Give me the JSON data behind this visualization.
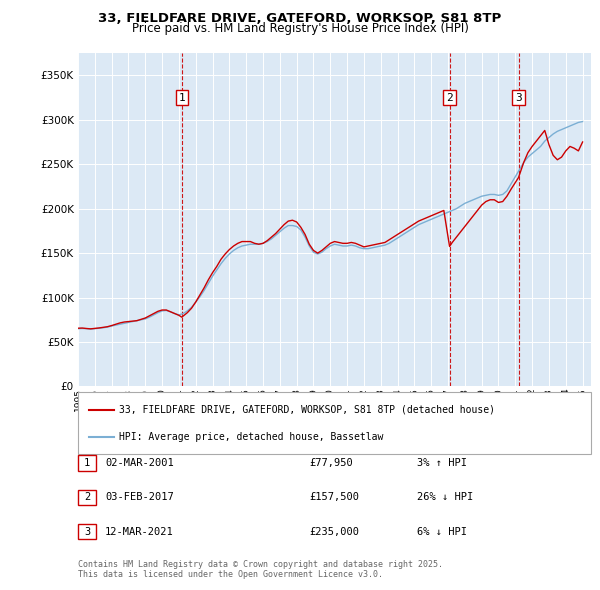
{
  "title_line1": "33, FIELDFARE DRIVE, GATEFORD, WORKSOP, S81 8TP",
  "title_line2": "Price paid vs. HM Land Registry's House Price Index (HPI)",
  "ytick_values": [
    0,
    50000,
    100000,
    150000,
    200000,
    250000,
    300000,
    350000
  ],
  "ylim": [
    0,
    375000
  ],
  "xlim_start": 1995.0,
  "xlim_end": 2025.5,
  "background_color": "#dce9f5",
  "grid_color": "#ffffff",
  "red_line_color": "#cc0000",
  "blue_line_color": "#7bafd4",
  "vline_color": "#cc0000",
  "legend_red_label": "33, FIELDFARE DRIVE, GATEFORD, WORKSOP, S81 8TP (detached house)",
  "legend_blue_label": "HPI: Average price, detached house, Bassetlaw",
  "sale_dates": [
    2001.17,
    2017.09,
    2021.19
  ],
  "sale_labels": [
    "1",
    "2",
    "3"
  ],
  "table_rows": [
    {
      "label": "1",
      "date": "02-MAR-2001",
      "price": "£77,950",
      "change": "3% ↑ HPI"
    },
    {
      "label": "2",
      "date": "03-FEB-2017",
      "price": "£157,500",
      "change": "26% ↓ HPI"
    },
    {
      "label": "3",
      "date": "12-MAR-2021",
      "price": "£235,000",
      "change": "6% ↓ HPI"
    }
  ],
  "footer": "Contains HM Land Registry data © Crown copyright and database right 2025.\nThis data is licensed under the Open Government Licence v3.0.",
  "hpi_x": [
    1995.0,
    1995.25,
    1995.5,
    1995.75,
    1996.0,
    1996.25,
    1996.5,
    1996.75,
    1997.0,
    1997.25,
    1997.5,
    1997.75,
    1998.0,
    1998.25,
    1998.5,
    1998.75,
    1999.0,
    1999.25,
    1999.5,
    1999.75,
    2000.0,
    2000.25,
    2000.5,
    2000.75,
    2001.0,
    2001.25,
    2001.5,
    2001.75,
    2002.0,
    2002.25,
    2002.5,
    2002.75,
    2003.0,
    2003.25,
    2003.5,
    2003.75,
    2004.0,
    2004.25,
    2004.5,
    2004.75,
    2005.0,
    2005.25,
    2005.5,
    2005.75,
    2006.0,
    2006.25,
    2006.5,
    2006.75,
    2007.0,
    2007.25,
    2007.5,
    2007.75,
    2008.0,
    2008.25,
    2008.5,
    2008.75,
    2009.0,
    2009.25,
    2009.5,
    2009.75,
    2010.0,
    2010.25,
    2010.5,
    2010.75,
    2011.0,
    2011.25,
    2011.5,
    2011.75,
    2012.0,
    2012.25,
    2012.5,
    2012.75,
    2013.0,
    2013.25,
    2013.5,
    2013.75,
    2014.0,
    2014.25,
    2014.5,
    2014.75,
    2015.0,
    2015.25,
    2015.5,
    2015.75,
    2016.0,
    2016.25,
    2016.5,
    2016.75,
    2017.0,
    2017.25,
    2017.5,
    2017.75,
    2018.0,
    2018.25,
    2018.5,
    2018.75,
    2019.0,
    2019.25,
    2019.5,
    2019.75,
    2020.0,
    2020.25,
    2020.5,
    2020.75,
    2021.0,
    2021.25,
    2021.5,
    2021.75,
    2022.0,
    2022.25,
    2022.5,
    2022.75,
    2023.0,
    2023.25,
    2023.5,
    2023.75,
    2024.0,
    2024.25,
    2024.5,
    2024.75,
    2025.0
  ],
  "hpi_y": [
    65000,
    65200,
    65000,
    64500,
    65000,
    65500,
    66000,
    66800,
    68000,
    69000,
    70000,
    71000,
    72000,
    73000,
    74000,
    75000,
    76000,
    78000,
    80500,
    83000,
    85000,
    85500,
    84000,
    82000,
    80500,
    82000,
    85000,
    89000,
    95000,
    101000,
    108000,
    116000,
    124000,
    131000,
    138000,
    144000,
    149000,
    153000,
    156000,
    158000,
    159000,
    160000,
    160000,
    160000,
    161000,
    163000,
    166000,
    170000,
    174000,
    178000,
    181000,
    181000,
    180000,
    176000,
    168000,
    158000,
    151000,
    149000,
    151000,
    155000,
    158000,
    160000,
    159000,
    158000,
    158000,
    159000,
    158000,
    156000,
    155000,
    155000,
    156000,
    157000,
    158000,
    159000,
    161000,
    164000,
    167000,
    170000,
    173000,
    176000,
    179000,
    182000,
    184000,
    186000,
    188000,
    190000,
    192000,
    194000,
    196000,
    198000,
    200000,
    203000,
    206000,
    208000,
    210000,
    212000,
    214000,
    215000,
    216000,
    216000,
    215000,
    216000,
    220000,
    228000,
    236000,
    244000,
    252000,
    258000,
    262000,
    266000,
    270000,
    276000,
    280000,
    284000,
    287000,
    289000,
    291000,
    293000,
    295000,
    297000,
    298000
  ],
  "price_x": [
    1995.0,
    1995.25,
    1995.5,
    1995.75,
    1996.0,
    1996.25,
    1996.5,
    1996.75,
    1997.0,
    1997.25,
    1997.5,
    1997.75,
    1998.0,
    1998.25,
    1998.5,
    1998.75,
    1999.0,
    1999.25,
    1999.5,
    1999.75,
    2000.0,
    2000.25,
    2000.5,
    2000.75,
    2001.0,
    2001.17,
    2001.5,
    2001.75,
    2002.0,
    2002.25,
    2002.5,
    2002.75,
    2003.0,
    2003.25,
    2003.5,
    2003.75,
    2004.0,
    2004.25,
    2004.5,
    2004.75,
    2005.0,
    2005.25,
    2005.5,
    2005.75,
    2006.0,
    2006.25,
    2006.5,
    2006.75,
    2007.0,
    2007.25,
    2007.5,
    2007.75,
    2008.0,
    2008.25,
    2008.5,
    2008.75,
    2009.0,
    2009.25,
    2009.5,
    2009.75,
    2010.0,
    2010.25,
    2010.5,
    2010.75,
    2011.0,
    2011.25,
    2011.5,
    2011.75,
    2012.0,
    2012.25,
    2012.5,
    2012.75,
    2013.0,
    2013.25,
    2013.5,
    2013.75,
    2014.0,
    2014.25,
    2014.5,
    2014.75,
    2015.0,
    2015.25,
    2015.5,
    2015.75,
    2016.0,
    2016.25,
    2016.5,
    2016.75,
    2017.09,
    2017.25,
    2017.5,
    2017.75,
    2018.0,
    2018.25,
    2018.5,
    2018.75,
    2019.0,
    2019.25,
    2019.5,
    2019.75,
    2020.0,
    2020.25,
    2020.5,
    2020.75,
    2021.19,
    2021.5,
    2021.75,
    2022.0,
    2022.25,
    2022.5,
    2022.75,
    2023.0,
    2023.25,
    2023.5,
    2023.75,
    2024.0,
    2024.25,
    2024.5,
    2024.75,
    2025.0
  ],
  "price_y": [
    65500,
    65700,
    65200,
    64800,
    65300,
    65800,
    66500,
    67200,
    68500,
    70000,
    71500,
    72500,
    73000,
    73500,
    74000,
    75500,
    77000,
    79500,
    82000,
    84500,
    86000,
    86000,
    84000,
    82000,
    80000,
    77950,
    83000,
    88000,
    95000,
    103000,
    111000,
    120000,
    128000,
    135000,
    143000,
    149000,
    154000,
    158000,
    161000,
    163000,
    163000,
    163000,
    161000,
    160000,
    161000,
    164000,
    168000,
    172000,
    177000,
    182000,
    186000,
    187000,
    185000,
    179000,
    171000,
    160000,
    153000,
    150000,
    153000,
    157000,
    161000,
    163000,
    162000,
    161000,
    161000,
    162000,
    161000,
    159000,
    157000,
    158000,
    159000,
    160000,
    161000,
    162000,
    165000,
    168000,
    171000,
    174000,
    177000,
    180000,
    183000,
    186000,
    188000,
    190000,
    192000,
    194000,
    196000,
    198000,
    157500,
    162000,
    168000,
    174000,
    180000,
    186000,
    192000,
    198000,
    204000,
    208000,
    210000,
    210000,
    207000,
    208000,
    214000,
    222000,
    235000,
    252000,
    263000,
    270000,
    276000,
    282000,
    288000,
    272000,
    260000,
    255000,
    258000,
    265000,
    270000,
    268000,
    265000,
    275000
  ]
}
